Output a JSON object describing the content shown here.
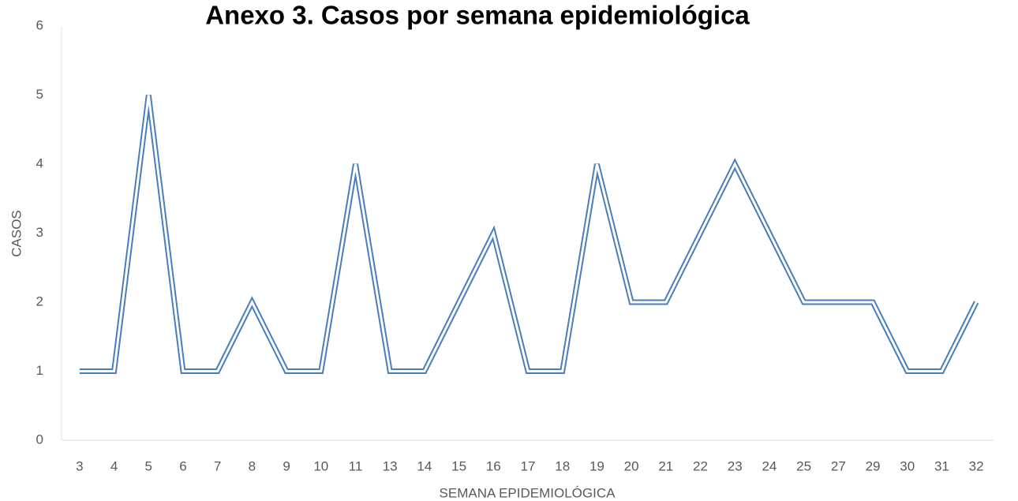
{
  "chart_data": {
    "type": "line",
    "title": "Anexo 3. Casos por semana epidemiológica",
    "x_label": "SEMANA EPIDEMIOLÓGICA",
    "y_label": "CASOS",
    "categories": [
      "3",
      "4",
      "5",
      "6",
      "7",
      "8",
      "9",
      "10",
      "11",
      "13",
      "14",
      "15",
      "16",
      "17",
      "18",
      "19",
      "20",
      "21",
      "22",
      "23",
      "24",
      "25",
      "27",
      "29",
      "30",
      "31",
      "32"
    ],
    "series": [
      {
        "name": "Casos",
        "color": "#4a7ebb",
        "values": [
          1,
          1,
          5,
          1,
          1,
          2,
          1,
          1,
          4,
          1,
          1,
          2,
          3,
          1,
          1,
          4,
          2,
          2,
          3,
          4,
          3,
          2,
          2,
          2,
          1,
          1,
          2
        ]
      }
    ],
    "ylim": [
      0,
      6
    ],
    "yticks": [
      0,
      1,
      2,
      3,
      4,
      5,
      6
    ],
    "grid": false
  }
}
